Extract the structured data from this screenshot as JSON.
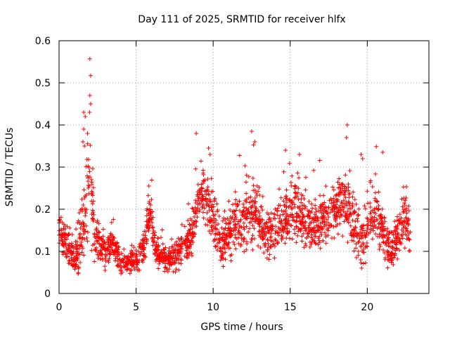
{
  "chart_data": {
    "type": "scatter",
    "title": "Day 111 of 2025, SRMTID for receiver hlfx",
    "xlabel": "GPS time / hours",
    "ylabel": "SRMTID / TECUs",
    "xlim": [
      0,
      24
    ],
    "ylim": [
      0,
      0.6
    ],
    "x_ticks": [
      "0",
      "5",
      "10",
      "15",
      "20"
    ],
    "y_ticks": [
      "0",
      "0.1",
      "0.2",
      "0.3",
      "0.4",
      "0.5",
      "0.6"
    ],
    "grid": true,
    "marker": "+",
    "color": "#ff0000",
    "profile": [
      {
        "t": 0.0,
        "y": 0.15,
        "spread": 0.03
      },
      {
        "t": 0.5,
        "y": 0.12,
        "spread": 0.035
      },
      {
        "t": 1.0,
        "y": 0.07,
        "spread": 0.025
      },
      {
        "t": 1.5,
        "y": 0.15,
        "spread": 0.07
      },
      {
        "t": 1.8,
        "y": 0.22,
        "spread": 0.1
      },
      {
        "t": 2.0,
        "y": 0.25,
        "spread": 0.12
      },
      {
        "t": 2.3,
        "y": 0.14,
        "spread": 0.05
      },
      {
        "t": 3.0,
        "y": 0.1,
        "spread": 0.03
      },
      {
        "t": 3.5,
        "y": 0.12,
        "spread": 0.03
      },
      {
        "t": 4.0,
        "y": 0.07,
        "spread": 0.025
      },
      {
        "t": 5.0,
        "y": 0.08,
        "spread": 0.025
      },
      {
        "t": 5.5,
        "y": 0.1,
        "spread": 0.03
      },
      {
        "t": 5.9,
        "y": 0.2,
        "spread": 0.04
      },
      {
        "t": 6.3,
        "y": 0.1,
        "spread": 0.03
      },
      {
        "t": 7.0,
        "y": 0.08,
        "spread": 0.025
      },
      {
        "t": 8.0,
        "y": 0.1,
        "spread": 0.03
      },
      {
        "t": 8.6,
        "y": 0.14,
        "spread": 0.04
      },
      {
        "t": 9.2,
        "y": 0.25,
        "spread": 0.05
      },
      {
        "t": 9.8,
        "y": 0.2,
        "spread": 0.05
      },
      {
        "t": 10.5,
        "y": 0.12,
        "spread": 0.04
      },
      {
        "t": 11.5,
        "y": 0.16,
        "spread": 0.05
      },
      {
        "t": 12.5,
        "y": 0.2,
        "spread": 0.07
      },
      {
        "t": 13.5,
        "y": 0.14,
        "spread": 0.04
      },
      {
        "t": 14.5,
        "y": 0.17,
        "spread": 0.05
      },
      {
        "t": 15.5,
        "y": 0.2,
        "spread": 0.06
      },
      {
        "t": 16.5,
        "y": 0.16,
        "spread": 0.05
      },
      {
        "t": 17.5,
        "y": 0.18,
        "spread": 0.05
      },
      {
        "t": 18.5,
        "y": 0.22,
        "spread": 0.06
      },
      {
        "t": 19.5,
        "y": 0.12,
        "spread": 0.05
      },
      {
        "t": 20.5,
        "y": 0.2,
        "spread": 0.06
      },
      {
        "t": 21.5,
        "y": 0.1,
        "spread": 0.04
      },
      {
        "t": 22.5,
        "y": 0.18,
        "spread": 0.05
      },
      {
        "t": 22.8,
        "y": 0.13,
        "spread": 0.04
      }
    ],
    "outliers": [
      [
        2.0,
        0.557
      ],
      [
        2.05,
        0.517
      ],
      [
        2.0,
        0.47
      ],
      [
        2.05,
        0.45
      ],
      [
        1.6,
        0.43
      ],
      [
        1.7,
        0.42
      ],
      [
        1.6,
        0.39
      ],
      [
        1.85,
        0.38
      ],
      [
        1.55,
        0.36
      ],
      [
        1.65,
        0.35
      ],
      [
        18.7,
        0.4
      ],
      [
        18.65,
        0.37
      ],
      [
        12.5,
        0.385
      ],
      [
        12.7,
        0.36
      ],
      [
        8.9,
        0.38
      ],
      [
        14.7,
        0.34
      ],
      [
        21.0,
        0.335
      ],
      [
        9.7,
        0.345
      ],
      [
        9.8,
        0.33
      ],
      [
        15.6,
        0.33
      ],
      [
        19.6,
        0.33
      ],
      [
        19.7,
        0.32
      ]
    ],
    "n_points": 2200
  }
}
